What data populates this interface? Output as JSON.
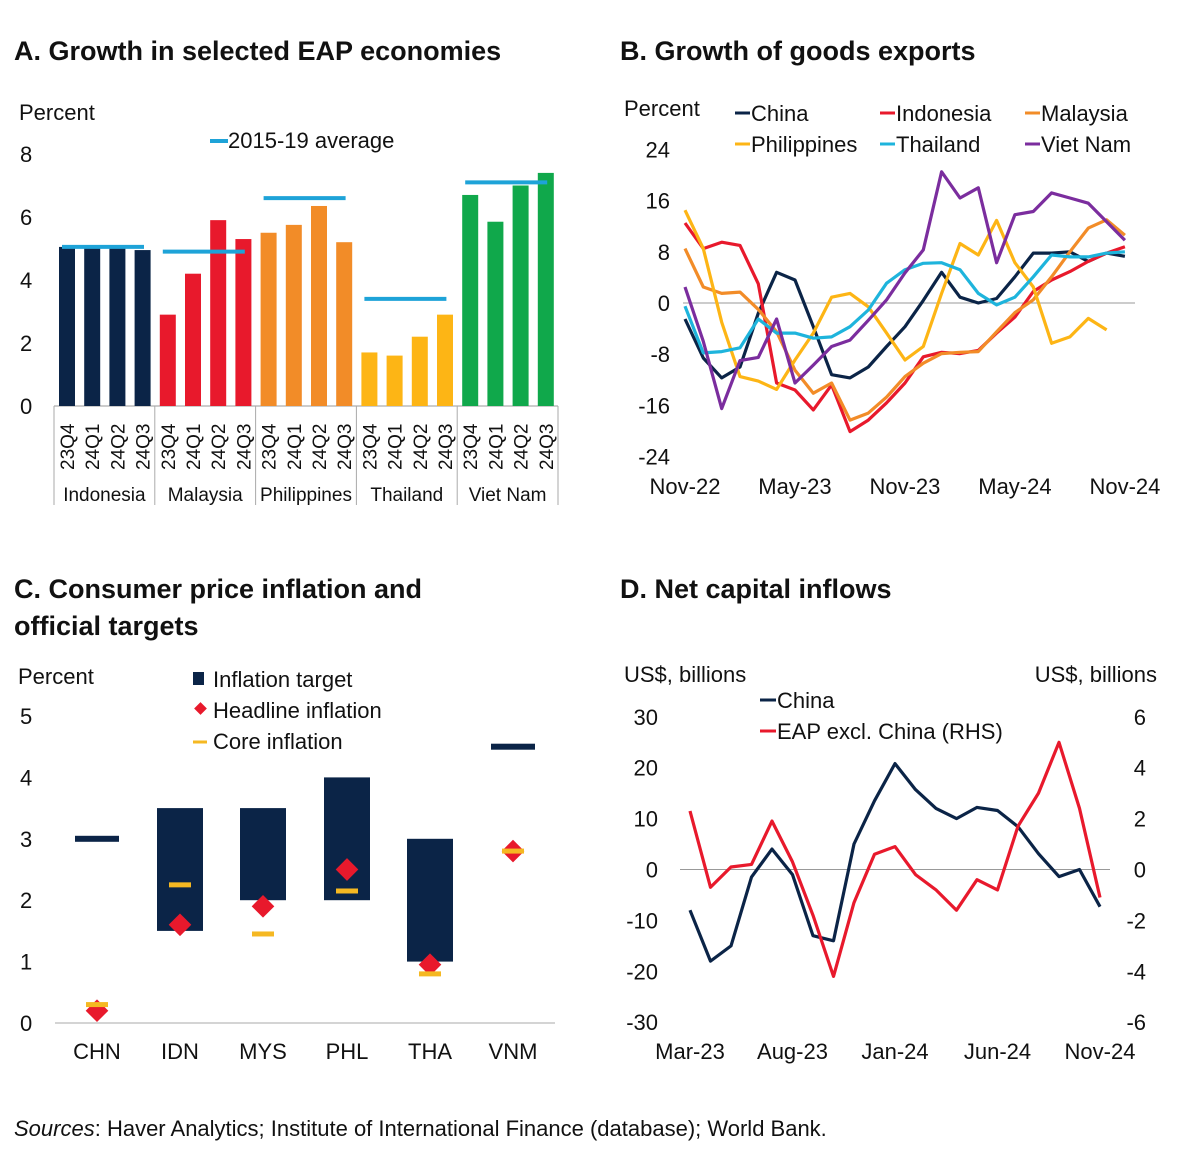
{
  "sources": {
    "label": "Sources",
    "text": ": Haver Analytics; Institute of International Finance (database); World Bank."
  },
  "chart_data": [
    {
      "id": "A",
      "type": "bar",
      "title": "A. Growth in selected EAP economies",
      "ylabel": "Percent",
      "ylim": [
        0,
        8
      ],
      "yticks": [
        0,
        2,
        4,
        6,
        8
      ],
      "legend": [
        {
          "name": "2015-19 average",
          "color": "#1EA3D8"
        }
      ],
      "legend_position": "top-center",
      "quarters": [
        "23Q4",
        "24Q1",
        "24Q2",
        "24Q3"
      ],
      "groups": [
        {
          "name": "Indonesia",
          "color": "#0B2447",
          "values": [
            5.05,
            5.1,
            5.05,
            4.95
          ],
          "average_2015_19": 5.05
        },
        {
          "name": "Malaysia",
          "color": "#E8192C",
          "values": [
            2.9,
            4.2,
            5.9,
            5.3
          ],
          "average_2015_19": 4.9
        },
        {
          "name": "Philippines",
          "color": "#F28C28",
          "values": [
            5.5,
            5.75,
            6.35,
            5.2
          ],
          "average_2015_19": 6.6
        },
        {
          "name": "Thailand",
          "color": "#FDB515",
          "values": [
            1.7,
            1.6,
            2.2,
            2.9
          ],
          "average_2015_19": 3.4
        },
        {
          "name": "Viet Nam",
          "color": "#10A84B",
          "values": [
            6.7,
            5.85,
            7.0,
            7.4
          ],
          "average_2015_19": 7.1
        }
      ]
    },
    {
      "id": "B",
      "type": "line",
      "title": "B. Growth of goods exports",
      "ylabel": "Percent",
      "ylim": [
        -24,
        24
      ],
      "yticks": [
        -24,
        -16,
        -8,
        0,
        8,
        16,
        24
      ],
      "x": [
        "Nov-22",
        "Dec-22",
        "Jan-23",
        "Feb-23",
        "Mar-23",
        "Apr-23",
        "May-23",
        "Jun-23",
        "Jul-23",
        "Aug-23",
        "Sep-23",
        "Oct-23",
        "Nov-23",
        "Dec-23",
        "Jan-24",
        "Feb-24",
        "Mar-24",
        "Apr-24",
        "May-24",
        "Jun-24",
        "Jul-24",
        "Aug-24",
        "Sep-24",
        "Oct-24",
        "Nov-24"
      ],
      "xticks": [
        "Nov-22",
        "May-23",
        "Nov-23",
        "May-24",
        "Nov-24"
      ],
      "legend_position": "top",
      "series": [
        {
          "name": "China",
          "color": "#0B2447",
          "values": [
            -2.5,
            -8.6,
            -11.7,
            -10,
            -1.6,
            4.8,
            3.6,
            -3.7,
            -11.2,
            -11.7,
            -10,
            -6.8,
            -3.7,
            0.4,
            4.8,
            0.9,
            0,
            0.7,
            4.1,
            7.8,
            7.8,
            8,
            6.5,
            7.8,
            7.3
          ]
        },
        {
          "name": "Indonesia",
          "color": "#E8192C",
          "values": [
            12.5,
            8.5,
            9.5,
            9,
            3,
            -12.5,
            -13.6,
            -16.7,
            -12.8,
            -20.1,
            -18.3,
            -15.6,
            -12.5,
            -8.4,
            -7.7,
            -7.9,
            -7.4,
            -4.7,
            -2.2,
            1.8,
            3.6,
            4.9,
            6.5,
            7.8,
            8.8
          ]
        },
        {
          "name": "Malaysia",
          "color": "#F28C28",
          "values": [
            8.5,
            2.5,
            1.5,
            1.7,
            -1,
            -4.5,
            -10.5,
            -14.1,
            -12.5,
            -18.3,
            -17.2,
            -14.7,
            -11.5,
            -9.4,
            -7.9,
            -7.7,
            -7.6,
            -4.5,
            -1.5,
            0.5,
            4.1,
            8.0,
            11.7,
            13,
            10.6
          ]
        },
        {
          "name": "Philippines",
          "color": "#FDB515",
          "values": [
            14.5,
            8.5,
            -3,
            -11.5,
            -12.2,
            -13.5,
            -8.9,
            -4.7,
            0.9,
            1.5,
            -0.6,
            -4.7,
            -8.9,
            -6.8,
            1.5,
            9.3,
            7.5,
            12.9,
            6.3,
            2.5,
            -6.3,
            -5.3,
            -2.4,
            -4.2,
            null
          ]
        },
        {
          "name": "Thailand",
          "color": "#1EB4DC",
          "values": [
            -0.5,
            -7.8,
            -7.6,
            -7,
            -2.5,
            -4.7,
            -4.7,
            -5.5,
            -5.3,
            -3.7,
            -1.1,
            3.1,
            5.2,
            6.2,
            6.3,
            5.2,
            1.5,
            -0.3,
            0.9,
            4.1,
            7.5,
            7.2,
            7.2,
            7.8,
            8
          ]
        },
        {
          "name": "Viet Nam",
          "color": "#7B2D9E",
          "values": [
            2.5,
            -6,
            -16.5,
            -9,
            -8.5,
            -2.5,
            -12.5,
            -9.7,
            -6.8,
            -5.8,
            -2.7,
            0.5,
            4.7,
            8.3,
            20.5,
            16.4,
            18,
            6.3,
            13.8,
            14.3,
            17.2,
            16.4,
            15.6,
            12.7,
            9.8
          ]
        }
      ]
    },
    {
      "id": "C",
      "type": "bar",
      "subtype": "range-with-markers",
      "title_lines": [
        "C. Consumer price inflation and",
        "official targets"
      ],
      "ylabel": "Percent",
      "ylim": [
        0,
        5
      ],
      "yticks": [
        0,
        1,
        2,
        3,
        4,
        5
      ],
      "legend_position": "top-center",
      "legend": [
        {
          "name": "Inflation target",
          "marker": "square",
          "color": "#0B2447"
        },
        {
          "name": "Headline inflation",
          "marker": "diamond",
          "color": "#E8192C"
        },
        {
          "name": "Core inflation",
          "marker": "dash",
          "color": "#F5B822"
        }
      ],
      "categories": [
        "CHN",
        "IDN",
        "MYS",
        "PHL",
        "THA",
        "VNM"
      ],
      "target_low": [
        3.0,
        1.5,
        2.0,
        2.0,
        1.0,
        4.5
      ],
      "target_high": [
        3.0,
        3.5,
        3.5,
        4.0,
        3.0,
        4.5
      ],
      "headline": [
        0.2,
        1.6,
        1.9,
        2.5,
        0.95,
        2.8
      ],
      "core": [
        0.3,
        2.25,
        1.45,
        2.15,
        0.8,
        2.8
      ]
    },
    {
      "id": "D",
      "type": "line",
      "title": "D. Net capital inflows",
      "ylabel": "US$, billions",
      "ylabel_right": "US$, billions",
      "ylim": [
        -30,
        30
      ],
      "yticks": [
        -30,
        -20,
        -10,
        0,
        10,
        20,
        30
      ],
      "ylim_right": [
        -6,
        6
      ],
      "yticks_right": [
        -6,
        -4,
        -2,
        0,
        2,
        4,
        6
      ],
      "x": [
        "Mar-23",
        "Apr-23",
        "May-23",
        "Jun-23",
        "Jul-23",
        "Aug-23",
        "Sep-23",
        "Oct-23",
        "Nov-23",
        "Dec-23",
        "Jan-24",
        "Feb-24",
        "Mar-24",
        "Apr-24",
        "May-24",
        "Jun-24",
        "Jul-24",
        "Aug-24",
        "Sep-24",
        "Oct-24",
        "Nov-24"
      ],
      "xticks": [
        "Mar-23",
        "Aug-23",
        "Jan-24",
        "Jun-24",
        "Nov-24"
      ],
      "legend_position": "top-left",
      "series": [
        {
          "name": "China",
          "axis": "left",
          "color": "#0B2447",
          "values": [
            -8,
            -18,
            -15,
            -1.5,
            4,
            -1,
            -13,
            -14,
            5,
            13.5,
            20.8,
            15.7,
            12,
            10,
            12.2,
            11.6,
            8.4,
            3.1,
            -1.4,
            0,
            -7.3
          ]
        },
        {
          "name": "EAP excl. China (RHS)",
          "axis": "right",
          "color": "#E8192C",
          "values": [
            2.3,
            -0.7,
            0.1,
            0.2,
            1.9,
            0.3,
            -1.8,
            -4.2,
            -1.3,
            0.6,
            0.9,
            -0.2,
            -0.8,
            -1.6,
            -0.4,
            -0.8,
            1.7,
            3.0,
            5.0,
            2.4,
            -1.1
          ]
        }
      ]
    }
  ]
}
